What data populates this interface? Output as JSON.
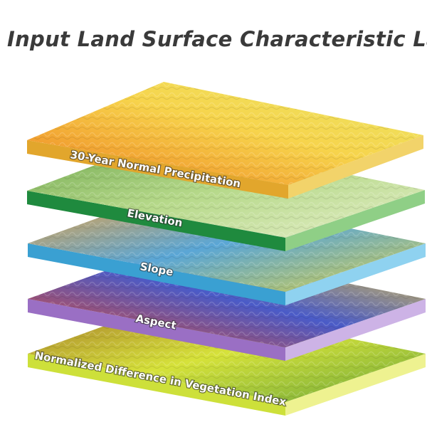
{
  "title": "Input Land Surface Characteristic Layers",
  "layers": [
    {
      "label": "30-Year Normal Precipitation",
      "colors": {
        "top_a": "#ee7d1e",
        "top_b": "#f7d44c",
        "top_c": "#e9e868",
        "side_front": "#e2a62c",
        "side_right": "#f2d36a"
      }
    },
    {
      "label": "Elevation",
      "colors": {
        "top_a": "#6da64c",
        "top_b": "#b6d98a",
        "top_c": "#e6efc9",
        "side_front": "#1f8a3e",
        "side_right": "#8fcf86"
      }
    },
    {
      "label": "Slope",
      "colors": {
        "top_a": "#f2a23a",
        "top_b": "#5aa6d6",
        "top_c": "#d8d04a",
        "side_front": "#3aa0d2",
        "side_right": "#8fd2f0"
      }
    },
    {
      "label": "Aspect",
      "colors": {
        "top_a": "#e6492e",
        "top_b": "#4a5bc8",
        "top_c": "#f2d23a",
        "side_front": "#9a6fc4",
        "side_right": "#cdb3e6"
      }
    },
    {
      "label": "Normalized Difference in Vegetation Index",
      "colors": {
        "top_a": "#a3752c",
        "top_b": "#d6e23a",
        "top_c": "#6aa63a",
        "side_front": "#cde03a",
        "side_right": "#eef290"
      }
    }
  ]
}
